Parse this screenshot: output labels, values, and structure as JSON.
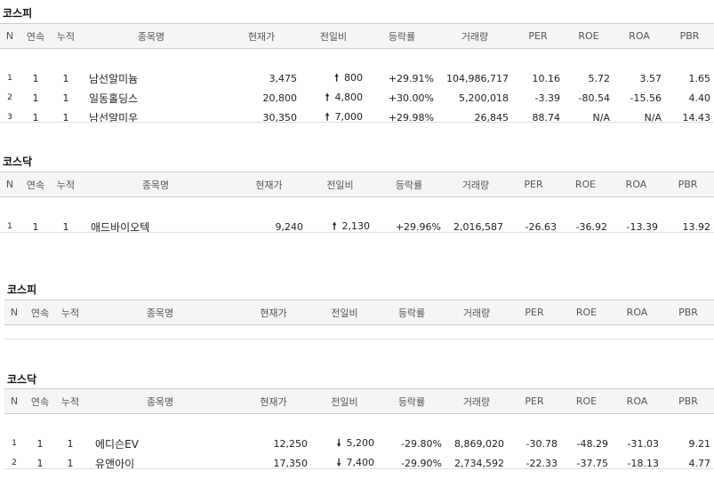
{
  "headers": [
    "N",
    "연속",
    "누적",
    "종목명",
    "현재가",
    "전일비",
    "등락률",
    "거래량",
    "PER",
    "ROE",
    "ROA",
    "PBR"
  ],
  "colors": {
    "up": "#d00000",
    "down": "#1a5fd6"
  },
  "icons": {
    "up": "up-arrow-icon",
    "down": "down-arrow-icon"
  },
  "sections": [
    {
      "title": "코스피",
      "rows": [
        {
          "n": "1",
          "cons": "1",
          "cum": "1",
          "name": "남선알미늄",
          "price": "3,475",
          "dir": "up",
          "arrow": "🠕",
          "change": "800",
          "rate": "+29.91%",
          "volume": "104,986,717",
          "per": "10.16",
          "roe": "5.72",
          "roa": "3.57",
          "pbr": "1.65"
        },
        {
          "n": "2",
          "cons": "1",
          "cum": "1",
          "name": "일동홀딩스",
          "price": "20,800",
          "dir": "up",
          "arrow": "🠕",
          "change": "4,800",
          "rate": "+30.00%",
          "volume": "5,200,018",
          "per": "-3.39",
          "roe": "-80.54",
          "roa": "-15.56",
          "pbr": "4.40"
        },
        {
          "n": "3",
          "cons": "1",
          "cum": "1",
          "name": "남선알미우",
          "price": "30,350",
          "dir": "up",
          "arrow": "🠕",
          "change": "7,000",
          "rate": "+29.98%",
          "volume": "26,845",
          "per": "88.74",
          "roe": "N/A",
          "roa": "N/A",
          "pbr": "14.43"
        }
      ]
    },
    {
      "title": "코스닥",
      "rows": [
        {
          "n": "1",
          "cons": "1",
          "cum": "1",
          "name": "애드바이오텍",
          "price": "9,240",
          "dir": "up",
          "arrow": "🠕",
          "change": "2,130",
          "rate": "+29.96%",
          "volume": "2,016,587",
          "per": "-26.63",
          "roe": "-36.92",
          "roa": "-13.39",
          "pbr": "13.92"
        }
      ]
    },
    {
      "title": "코스피",
      "rows": []
    },
    {
      "title": "코스닥",
      "rows": [
        {
          "n": "1",
          "cons": "1",
          "cum": "1",
          "name": "에디슨EV",
          "price": "12,250",
          "dir": "down",
          "arrow": "🠗",
          "change": "5,200",
          "rate": "-29.80%",
          "volume": "8,869,020",
          "per": "-30.78",
          "roe": "-48.29",
          "roa": "-31.03",
          "pbr": "9.21"
        },
        {
          "n": "2",
          "cons": "1",
          "cum": "1",
          "name": "유앤아이",
          "price": "17,350",
          "dir": "down",
          "arrow": "🠗",
          "change": "7,400",
          "rate": "-29.90%",
          "volume": "2,734,592",
          "per": "-22.33",
          "roe": "-37.75",
          "roa": "-18.13",
          "pbr": "4.77"
        }
      ]
    }
  ]
}
